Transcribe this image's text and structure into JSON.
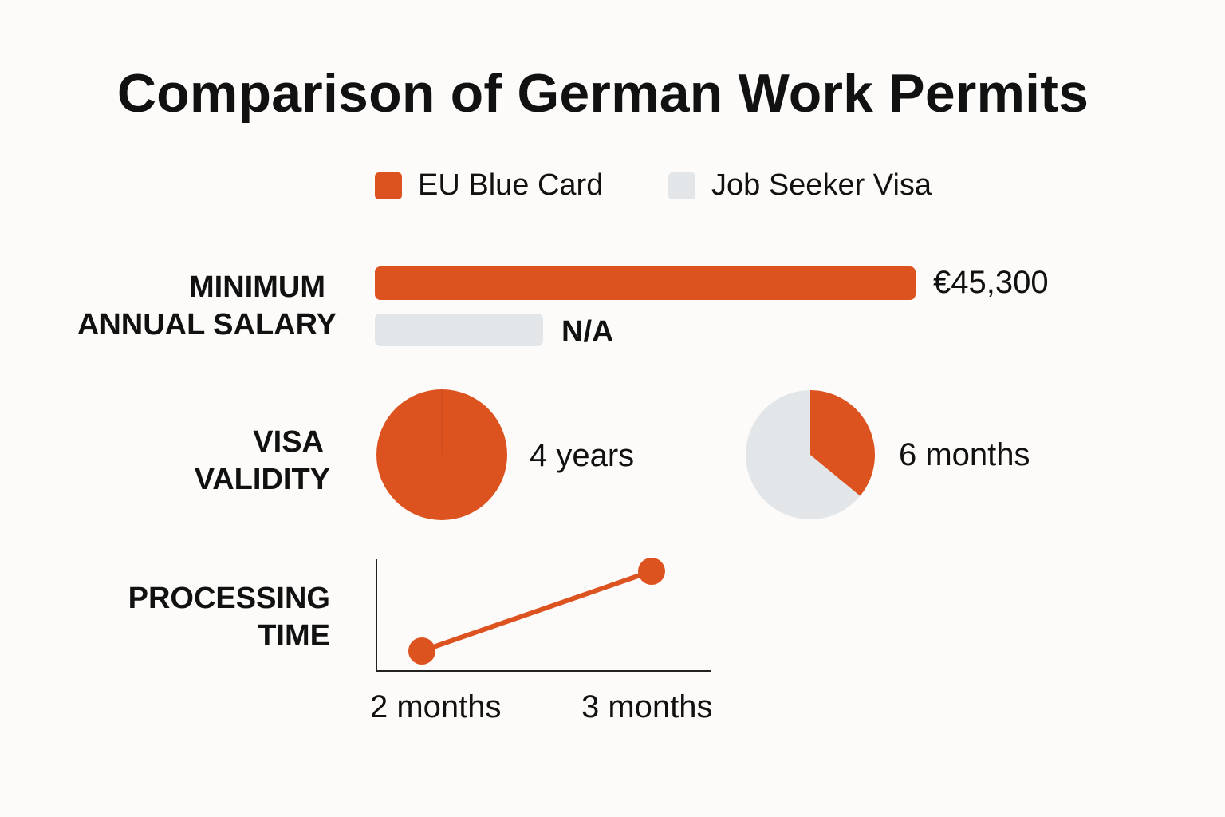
{
  "title": "Comparison of German Work Permits",
  "colors": {
    "eu_blue_card": "#dd5320",
    "job_seeker_visa": "#e3e6e8",
    "axis": "#222222"
  },
  "legend": [
    {
      "label": "EU Blue Card",
      "color": "#dd5320"
    },
    {
      "label": "Job Seeker Visa",
      "color": "#e3e6e8"
    }
  ],
  "rows": {
    "salary": {
      "label_line1": "MINIMUM",
      "label_line2": "ANNUAL SALARY",
      "blue_card_value": "€45,300",
      "job_seeker_value": "N/A"
    },
    "validity": {
      "label_line1": "VISA",
      "label_line2": "VALIDITY",
      "blue_card_value": "4 years",
      "job_seeker_value": "6 months"
    },
    "processing": {
      "label_line1": "PROCESSING",
      "label_line2": "TIME",
      "tick_1": "2 months",
      "tick_2": "3 months"
    }
  },
  "chart_data": [
    {
      "type": "bar",
      "title": "MINIMUM ANNUAL SALARY",
      "categories": [
        "EU Blue Card",
        "Job Seeker Visa"
      ],
      "values": [
        45300,
        null
      ],
      "value_labels": [
        "€45,300",
        "N/A"
      ],
      "orientation": "horizontal"
    },
    {
      "type": "pie",
      "title": "VISA VALIDITY",
      "series": [
        {
          "name": "EU Blue Card",
          "value_label": "4 years",
          "filled_fraction": 1.0
        },
        {
          "name": "Job Seeker Visa",
          "value_label": "6 months",
          "filled_fraction": 0.36
        }
      ]
    },
    {
      "type": "line",
      "title": "PROCESSING TIME",
      "x": [
        "2 months",
        "3 months"
      ],
      "y": [
        2,
        3
      ],
      "grid": false
    }
  ]
}
